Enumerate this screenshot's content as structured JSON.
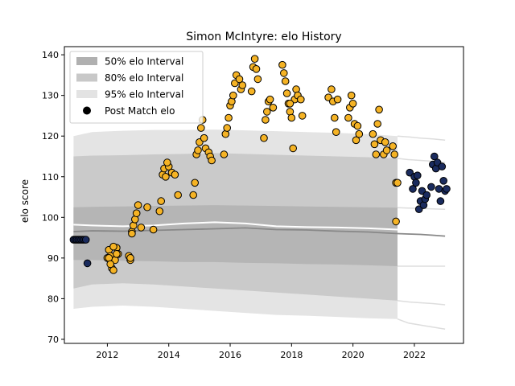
{
  "chart_data": {
    "type": "scatter",
    "title": "Simon McIntyre: elo History",
    "xlabel": "",
    "ylabel": "elo score",
    "xlim": [
      2010.6,
      2023.6
    ],
    "ylim": [
      69,
      142
    ],
    "x_ticks": [
      2012,
      2014,
      2016,
      2018,
      2020,
      2022
    ],
    "x_tick_labels": [
      "2012",
      "2014",
      "2016",
      "2018",
      "2020",
      "2022"
    ],
    "y_ticks": [
      70,
      80,
      90,
      100,
      110,
      120,
      130,
      140
    ],
    "y_tick_labels": [
      "70",
      "80",
      "90",
      "100",
      "110",
      "120",
      "130",
      "140"
    ],
    "grid": false,
    "legend_position": "top-left",
    "legend": [
      {
        "label": "50% elo Interval",
        "kind": "band",
        "color": "#b0b0b0"
      },
      {
        "label": "80% elo Interval",
        "kind": "band",
        "color": "#c8c8c8"
      },
      {
        "label": "95% elo Interval",
        "kind": "band",
        "color": "#e3e3e3"
      },
      {
        "label": "Post Match elo",
        "kind": "marker",
        "color": "#000000"
      }
    ],
    "colors": {
      "band50": "#b5b5b5",
      "band80": "#cacaca",
      "band95": "#e4e4e4",
      "median_line": "#888888",
      "mean_line": "#ffffff",
      "point_gold": "#f5b325",
      "point_navy": "#1a2b5e",
      "edge": "#000000"
    },
    "bands": {
      "x": [
        2010.9,
        2011.5,
        2012.5,
        2013.5,
        2014.5,
        2015.5,
        2016.5,
        2017.5,
        2018.5,
        2019.5,
        2020.5,
        2021.45
      ],
      "median": [
        96.5,
        96.7,
        96.6,
        96.8,
        97.0,
        97.2,
        97.4,
        97.0,
        96.9,
        96.6,
        96.4,
        96.0
      ],
      "mean": [
        98.2,
        98.0,
        97.8,
        98.0,
        98.5,
        98.8,
        98.5,
        97.8,
        97.6,
        97.5,
        97.3,
        97.0
      ],
      "p25": [
        89.5,
        89.5,
        89.3,
        89.2,
        89.0,
        89.0,
        88.8,
        88.7,
        88.5,
        88.4,
        88.2,
        88.0
      ],
      "p75": [
        102.5,
        102.6,
        102.7,
        102.8,
        102.9,
        103.0,
        102.9,
        102.8,
        102.7,
        102.6,
        102.5,
        102.4
      ],
      "p10": [
        82.5,
        83.5,
        83.8,
        83.5,
        83.0,
        82.5,
        82.0,
        81.5,
        81.0,
        80.5,
        80.0,
        79.5
      ],
      "p90": [
        115.0,
        115.2,
        115.3,
        115.5,
        115.6,
        115.8,
        115.6,
        115.4,
        115.2,
        115.0,
        114.8,
        114.5
      ],
      "p2_5": [
        77.5,
        78.0,
        78.3,
        78.0,
        77.5,
        77.0,
        76.5,
        76.0,
        75.8,
        75.5,
        75.2,
        75.0
      ],
      "p97_5": [
        120.0,
        121.0,
        121.3,
        121.5,
        121.5,
        121.6,
        121.4,
        121.2,
        121.0,
        120.8,
        120.5,
        120.0
      ]
    },
    "forecast": {
      "x": [
        2021.45,
        2021.8,
        2022.2,
        2022.6,
        2023.0
      ],
      "median": [
        96.0,
        95.9,
        95.8,
        95.6,
        95.4
      ],
      "mean": [
        97.0,
        96.5,
        96.2,
        95.9,
        95.6
      ],
      "p25": [
        88.0,
        88.0,
        88.0,
        88.0,
        88.0
      ],
      "p75": [
        102.4,
        102.3,
        102.2,
        102.1,
        102.0
      ],
      "p10": [
        79.5,
        79.2,
        79.0,
        78.8,
        78.5
      ],
      "p90": [
        114.5,
        114.2,
        114.0,
        113.8,
        113.5
      ],
      "p2_5": [
        75.0,
        74.0,
        73.5,
        73.0,
        72.5
      ],
      "p97_5": [
        120.0,
        119.8,
        119.5,
        119.3,
        119.0
      ]
    },
    "series": [
      {
        "color_key": "point_gold",
        "x": [
          2012.0,
          2012.05,
          2012.1,
          2012.15,
          2012.2,
          2012.25,
          2012.3,
          2012.35,
          2012.05,
          2012.1,
          2012.2,
          2012.3,
          2012.7,
          2012.75,
          2012.8,
          2012.85,
          2012.9,
          2012.95,
          2013.0,
          2012.75,
          2012.8,
          2013.1,
          2013.3,
          2013.5,
          2013.7,
          2013.75,
          2013.8,
          2013.85,
          2013.9,
          2014.0,
          2014.1,
          2013.95,
          2014.2,
          2014.3,
          2014.8,
          2014.85,
          2014.9,
          2014.95,
          2015.0,
          2015.05,
          2015.1,
          2015.15,
          2015.2,
          2015.3,
          2015.35,
          2015.4,
          2015.8,
          2015.85,
          2015.9,
          2015.95,
          2016.0,
          2016.05,
          2016.1,
          2016.15,
          2016.2,
          2016.3,
          2016.35,
          2016.4,
          2016.7,
          2016.75,
          2016.8,
          2016.85,
          2016.9,
          2017.1,
          2017.15,
          2017.2,
          2017.25,
          2017.3,
          2017.4,
          2017.7,
          2017.75,
          2017.8,
          2017.85,
          2017.9,
          2017.95,
          2018.0,
          2018.05,
          2018.1,
          2018.15,
          2018.2,
          2018.3,
          2018.35,
          2017.95,
          2019.2,
          2019.3,
          2019.35,
          2019.4,
          2019.45,
          2019.5,
          2019.85,
          2019.9,
          2019.95,
          2020.0,
          2020.05,
          2020.1,
          2020.15,
          2020.2,
          2020.65,
          2020.7,
          2020.75,
          2020.8,
          2020.85,
          2020.9,
          2021.0,
          2021.05,
          2021.1,
          2021.3,
          2021.35,
          2021.4,
          2021.45,
          2021.4
        ],
        "y": [
          90.0,
          92.0,
          90.5,
          87.5,
          87.0,
          89.5,
          92.5,
          91.0,
          90.0,
          88.5,
          92.8,
          91.0,
          90.5,
          89.5,
          96.5,
          98.0,
          99.5,
          101.0,
          103.0,
          90.0,
          96.0,
          97.5,
          102.5,
          97.0,
          101.5,
          104.0,
          110.5,
          112.0,
          110.0,
          112.5,
          111.0,
          113.5,
          110.5,
          105.5,
          105.5,
          108.5,
          115.5,
          116.5,
          118.5,
          122.0,
          124.0,
          119.5,
          117.0,
          116.0,
          115.0,
          114.0,
          115.5,
          120.5,
          122.0,
          124.5,
          127.5,
          128.5,
          130.0,
          133.0,
          135.0,
          134.0,
          131.5,
          132.5,
          131.0,
          137.0,
          139.0,
          136.5,
          134.0,
          119.5,
          124.0,
          126.0,
          128.5,
          129.0,
          127.0,
          137.5,
          135.5,
          133.5,
          130.5,
          128.0,
          126.0,
          124.5,
          117.0,
          129.0,
          131.5,
          130.0,
          129.0,
          125.0,
          128.0,
          129.5,
          131.5,
          128.5,
          124.5,
          121.0,
          129.0,
          124.5,
          127.0,
          130.0,
          128.0,
          123.0,
          119.0,
          122.5,
          120.5,
          120.5,
          118.0,
          115.5,
          123.0,
          126.5,
          119.0,
          115.5,
          118.5,
          116.5,
          117.5,
          115.5,
          108.5,
          108.5,
          99.0
        ]
      },
      {
        "color_key": "point_navy",
        "x": [
          2010.9,
          2010.95,
          2011.0,
          2011.05,
          2011.1,
          2011.15,
          2011.2,
          2011.25,
          2011.3,
          2011.35,
          2021.85,
          2021.95,
          2022.0,
          2022.05,
          2022.1,
          2022.15,
          2022.2,
          2022.25,
          2022.3,
          2022.35,
          2022.4,
          2022.55,
          2022.6,
          2022.65,
          2022.7,
          2022.75,
          2022.8,
          2022.85,
          2022.9,
          2022.95,
          2023.0,
          2023.05
        ],
        "y": [
          94.5,
          94.5,
          94.5,
          94.5,
          94.5,
          94.5,
          94.5,
          94.5,
          94.5,
          88.7,
          111.0,
          107.0,
          110.0,
          108.5,
          110.3,
          102.0,
          104.0,
          106.5,
          103.0,
          104.5,
          105.5,
          107.5,
          113.0,
          115.0,
          112.0,
          113.5,
          107.0,
          104.0,
          112.5,
          109.0,
          106.5,
          107.0
        ]
      }
    ]
  }
}
